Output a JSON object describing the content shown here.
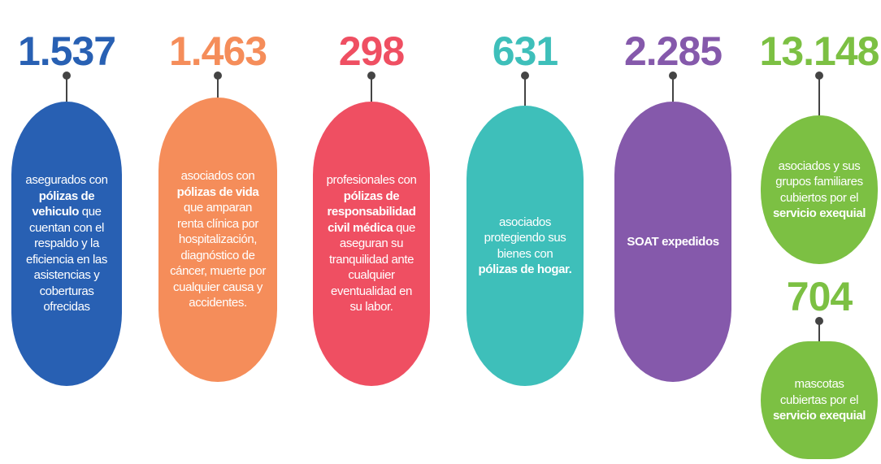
{
  "items": [
    {
      "number": "1.537",
      "color": "#2860b3",
      "segments": [
        {
          "text": "asegurados con "
        },
        {
          "text": "pólizas de vehiculo",
          "bold": true
        },
        {
          "text": " que cuentan con el respaldo y la eficiencia en las asistencias y coberturas ofrecidas"
        }
      ]
    },
    {
      "number": "1.463",
      "color": "#f58d5a",
      "segments": [
        {
          "text": "asociados con "
        },
        {
          "text": "pólizas de vida",
          "bold": true
        },
        {
          "text": " que amparan renta clínica por hospitalización, diagnóstico de cáncer, muerte por cualquier causa y accidentes."
        }
      ]
    },
    {
      "number": "298",
      "color": "#ef4f62",
      "segments": [
        {
          "text": "profesionales con "
        },
        {
          "text": "pólizas de responsabilidad civil médica",
          "bold": true
        },
        {
          "text": " que aseguran su tranquilidad ante cualquier eventualidad en su labor."
        }
      ]
    },
    {
      "number": "631",
      "color": "#3ebfba",
      "segments": [
        {
          "text": "asociados protegiendo sus bienes con "
        },
        {
          "text": "pólizas de hogar.",
          "bold": true
        }
      ]
    },
    {
      "number": "2.285",
      "color": "#8559ab",
      "segments": [
        {
          "text": "SOAT expedidos",
          "bold": true
        }
      ]
    },
    {
      "number": "13.148",
      "color": "#7cc043",
      "segments": [
        {
          "text": "asociados y sus grupos familiares cubiertos por el "
        },
        {
          "text": "servicio exequial",
          "bold": true
        }
      ]
    },
    {
      "number": "704",
      "color": "#7cc043",
      "segments": [
        {
          "text": "mascotas cubiertas por el "
        },
        {
          "text": "servicio exequial",
          "bold": true
        }
      ]
    }
  ]
}
